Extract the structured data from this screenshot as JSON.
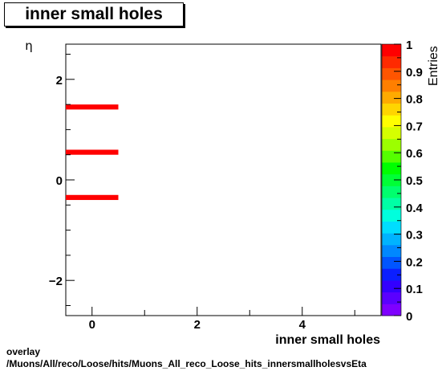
{
  "chart_data": {
    "type": "heatmap",
    "title": "inner small holes",
    "xlabel": "inner small holes",
    "ylabel": "η",
    "zlabel": "Entries",
    "xlim": [
      -0.5,
      5.5
    ],
    "ylim": [
      -2.7,
      2.7
    ],
    "zlim": [
      0,
      1
    ],
    "x_ticks": [
      0,
      2,
      4
    ],
    "y_ticks": [
      -2,
      0,
      2
    ],
    "z_ticks": [
      0,
      0.1,
      0.2,
      0.3,
      0.4,
      0.5,
      0.6,
      0.7,
      0.8,
      0.9,
      1
    ],
    "cells": [
      {
        "x": [
          -0.5,
          0.5
        ],
        "y": [
          1.4,
          1.5
        ],
        "z": 1
      },
      {
        "x": [
          -0.5,
          0.5
        ],
        "y": [
          0.5,
          0.6
        ],
        "z": 1
      },
      {
        "x": [
          -0.5,
          0.5
        ],
        "y": [
          -0.4,
          -0.3
        ],
        "z": 1
      }
    ]
  },
  "footer": {
    "line1": "overlay",
    "line2": "/Muons/All/reco/Loose/hits/Muons_All_reco_Loose_hits_innersmallholesvsEta"
  }
}
